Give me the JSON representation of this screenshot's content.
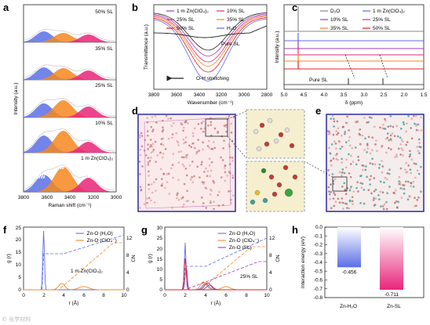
{
  "panels": {
    "a": {
      "label": "a",
      "xlabel": "Raman shift (cm⁻¹)",
      "ylabel": "Intensity (a.u.)",
      "xticks": [
        "3800",
        "3600",
        "3400",
        "3200",
        "3000"
      ],
      "samples": [
        "50% SL",
        "35% SL",
        "25% SL",
        "10% SL",
        "1 m Zn(ClO₄)₂"
      ],
      "peak_labels": [
        "MW",
        "IW",
        "FW"
      ]
    },
    "b": {
      "label": "b",
      "xlabel": "Wavenumber (cm⁻¹)",
      "ylabel": "Transmittance (a.u.)",
      "xticks": [
        "3800",
        "3600",
        "3400",
        "3200",
        "3000",
        "2800"
      ],
      "legend": [
        "1 m Zn(ClO₄)₂",
        "10% SL",
        "25% SL",
        "35% SL",
        "50% SL",
        "H₂O"
      ],
      "annot_pure": "Pure SL",
      "annot_oh": "O-H stretching"
    },
    "c": {
      "label": "c",
      "xlabel": "δ (ppm)",
      "ylabel": "Intensity (a.u.)",
      "xticks": [
        "5.0",
        "4.5",
        "4.0",
        "3.5",
        "3.0",
        "2.5",
        "2.0",
        "1.5"
      ],
      "legend": [
        "D₂O",
        "1 m Zn(ClO₄)₂",
        "10% SL",
        "25% SL",
        "35% SL",
        "50% SL"
      ],
      "annot_pure": "Pure SL"
    },
    "d": {
      "label": "d"
    },
    "e": {
      "label": "e"
    },
    "f": {
      "label": "f",
      "xlabel": "r (Å)",
      "ylabel": "g (r)",
      "y2label": "CN",
      "xticks": [
        "0",
        "2",
        "4",
        "6",
        "8",
        "10"
      ],
      "yticks": [
        "0",
        "5",
        "10",
        "15",
        "20",
        "25"
      ],
      "y2ticks": [
        "0",
        "4",
        "8",
        "12"
      ],
      "legend": [
        "Zn-O (H₂O)",
        "Zn-O (ClO₄⁻)"
      ],
      "sample": "1 m Zn(ClO₄)₂"
    },
    "g": {
      "label": "g",
      "xlabel": "r (Å)",
      "ylabel": "g (r)",
      "y2label": "CN",
      "xticks": [
        "0",
        "2",
        "4",
        "6",
        "8",
        "10"
      ],
      "yticks": [
        "0",
        "5",
        "10",
        "15",
        "20",
        "25",
        "30"
      ],
      "y2ticks": [
        "0",
        "4",
        "8",
        "12"
      ],
      "legend": [
        "Zn-O (H₂O)",
        "Zn-O (ClO₄⁻)",
        "Zn-O (SL)"
      ],
      "sample": "25% SL"
    },
    "h": {
      "label": "h",
      "ylabel": "Interaction energy (eV)",
      "yticks": [
        "0.0",
        "-0.1",
        "-0.2",
        "-0.3",
        "-0.4",
        "-0.5",
        "-0.6",
        "-0.7",
        "-0.8"
      ],
      "categories": [
        "Zn-H₂O",
        "Zn-SL"
      ],
      "value_labels": [
        "-0.456",
        "-0.711"
      ]
    }
  },
  "chart_data": [
    {
      "type": "bar",
      "panel": "h",
      "categories": [
        "Zn-H2O",
        "Zn-SL"
      ],
      "values": [
        -0.456,
        -0.711
      ],
      "ylabel": "Interaction energy (eV)",
      "ylim": [
        -0.8,
        0
      ]
    }
  ],
  "colors": {
    "blue": "#5b6ee6",
    "orange": "#f5871f",
    "pink": "#e8257a",
    "red": "#e02020",
    "purple": "#9b3fb5",
    "gray": "#888888",
    "black": "#222222"
  },
  "watermark": "© 化学材料"
}
